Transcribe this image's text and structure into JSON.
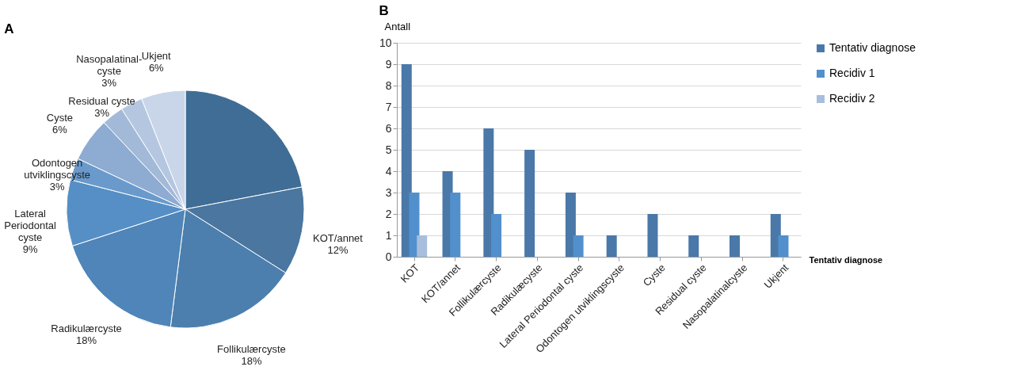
{
  "chart_data": [
    {
      "type": "pie",
      "title": "A",
      "categories": [
        null,
        "KOT/annet",
        "Follikulærcyste",
        "Radikulærcyste",
        "Lateral\nPeriodontal\ncyste",
        "Odontogen\nutviklingscyste",
        "Cyste",
        "Residual cyste",
        "Nasopalatinal-\ncyste",
        "Ukjent"
      ],
      "values": [
        22,
        12,
        18,
        18,
        9,
        3,
        6,
        3,
        3,
        6
      ],
      "value_labels": [
        null,
        "12%",
        "18%",
        "18%",
        "9%",
        "3%",
        "6%",
        "3%",
        "3%",
        "6%"
      ],
      "colors": [
        "#3f6d95",
        "#4a76a0",
        "#4c7fae",
        "#4f85b8",
        "#558fc5",
        "#6a9acb",
        "#8eabd2",
        "#a3b9d8",
        "#b5c7e0",
        "#c9d6e9"
      ]
    },
    {
      "type": "bar",
      "title": "B",
      "ylabel": "Antall",
      "xlabel": "Tentativ diagnose",
      "categories": [
        "KOT",
        "KOT/annet",
        "Follikulærcyste",
        "Radikulæcyste",
        "Lateral Periodontal cyste",
        "Odontogen utviklingscyste",
        "Cyste",
        "Residual cyste",
        "Nasopalatinalcyste",
        "Ukjent"
      ],
      "series": [
        {
          "name": "Tentativ diagnose",
          "color": "#4a78a8",
          "values": [
            9,
            4,
            6,
            5,
            3,
            1,
            2,
            1,
            1,
            2
          ]
        },
        {
          "name": "Recidiv 1",
          "color": "#5190cc",
          "values": [
            3,
            3,
            2,
            null,
            1,
            null,
            null,
            null,
            null,
            1
          ]
        },
        {
          "name": "Recidiv 2",
          "color": "#a8bedc",
          "values": [
            1,
            null,
            null,
            null,
            null,
            null,
            null,
            null,
            null,
            null
          ]
        }
      ],
      "ylim": [
        0,
        10
      ],
      "yticks": [
        0,
        1,
        2,
        3,
        4,
        5,
        6,
        7,
        8,
        9,
        10
      ],
      "grid": "y",
      "legend": "right"
    }
  ]
}
